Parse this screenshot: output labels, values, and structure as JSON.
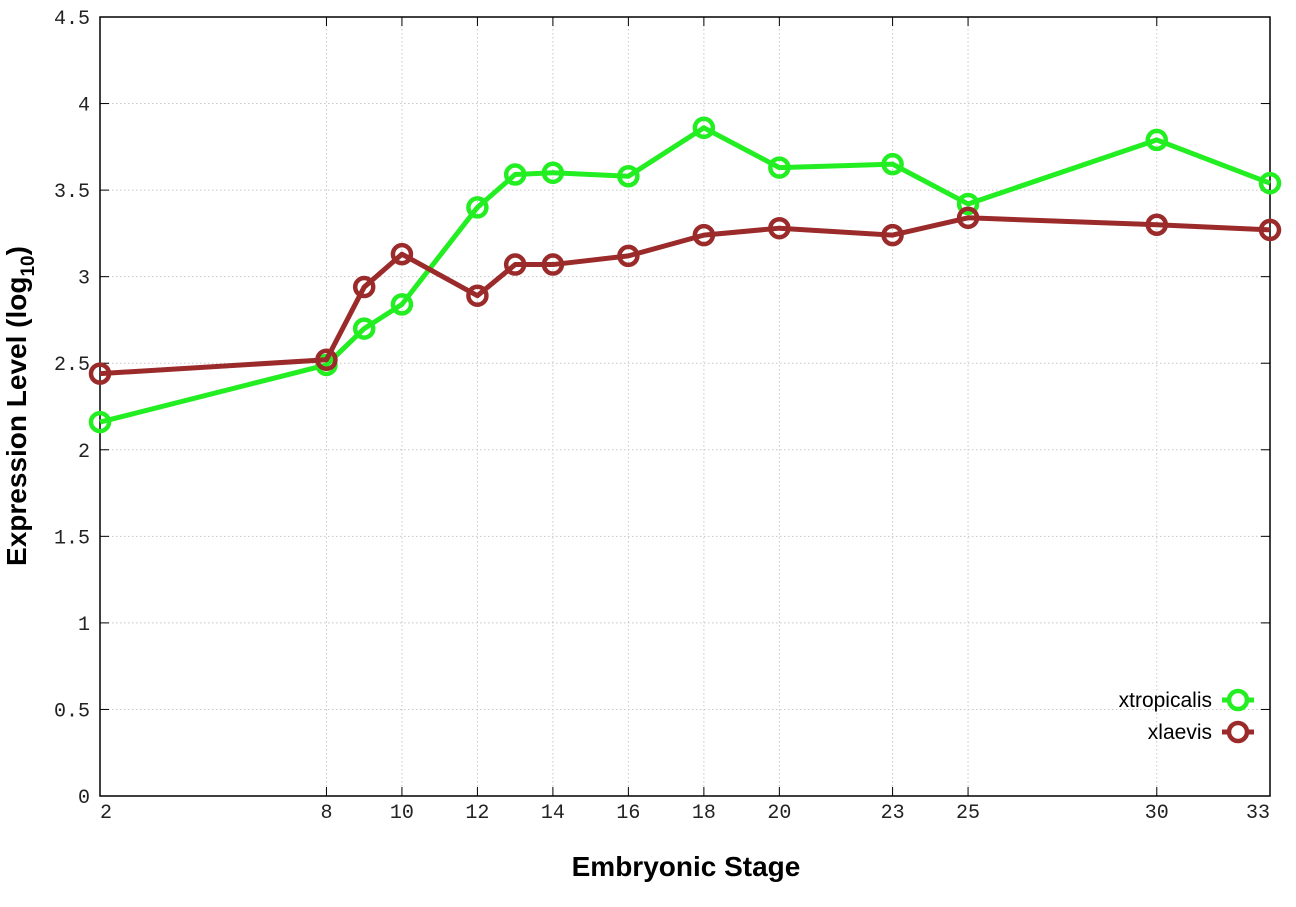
{
  "chart_data": {
    "type": "line",
    "xlabel": "Embryonic Stage",
    "ylabel": "Expression Level (log",
    "ylabel_subscript": "10",
    "ylabel_suffix": ")",
    "x_ticks": [
      2,
      8,
      10,
      12,
      14,
      16,
      18,
      20,
      23,
      25,
      30,
      33
    ],
    "y_ticks": [
      "0",
      "0.5",
      "1",
      "1.5",
      "2",
      "2.5",
      "3",
      "3.5",
      "4",
      "4.5"
    ],
    "xlim": [
      2,
      33
    ],
    "ylim": [
      0,
      4.5
    ],
    "grid": true,
    "legend_position": "bottom-right",
    "series": [
      {
        "name": "xtropicalis",
        "color": "#22ee22",
        "x": [
          2,
          8,
          9,
          10,
          12,
          13,
          14,
          16,
          18,
          20,
          23,
          25,
          30,
          33
        ],
        "y": [
          2.16,
          2.49,
          2.7,
          2.84,
          3.4,
          3.59,
          3.6,
          3.58,
          3.86,
          3.63,
          3.65,
          3.42,
          3.79,
          3.54
        ]
      },
      {
        "name": "xlaevis",
        "color": "#9b2a2a",
        "x": [
          2,
          8,
          9,
          10,
          12,
          13,
          14,
          16,
          18,
          20,
          23,
          25,
          30,
          33
        ],
        "y": [
          2.44,
          2.52,
          2.94,
          3.13,
          2.89,
          3.07,
          3.07,
          3.12,
          3.24,
          3.28,
          3.24,
          3.34,
          3.3,
          3.27
        ]
      }
    ]
  }
}
